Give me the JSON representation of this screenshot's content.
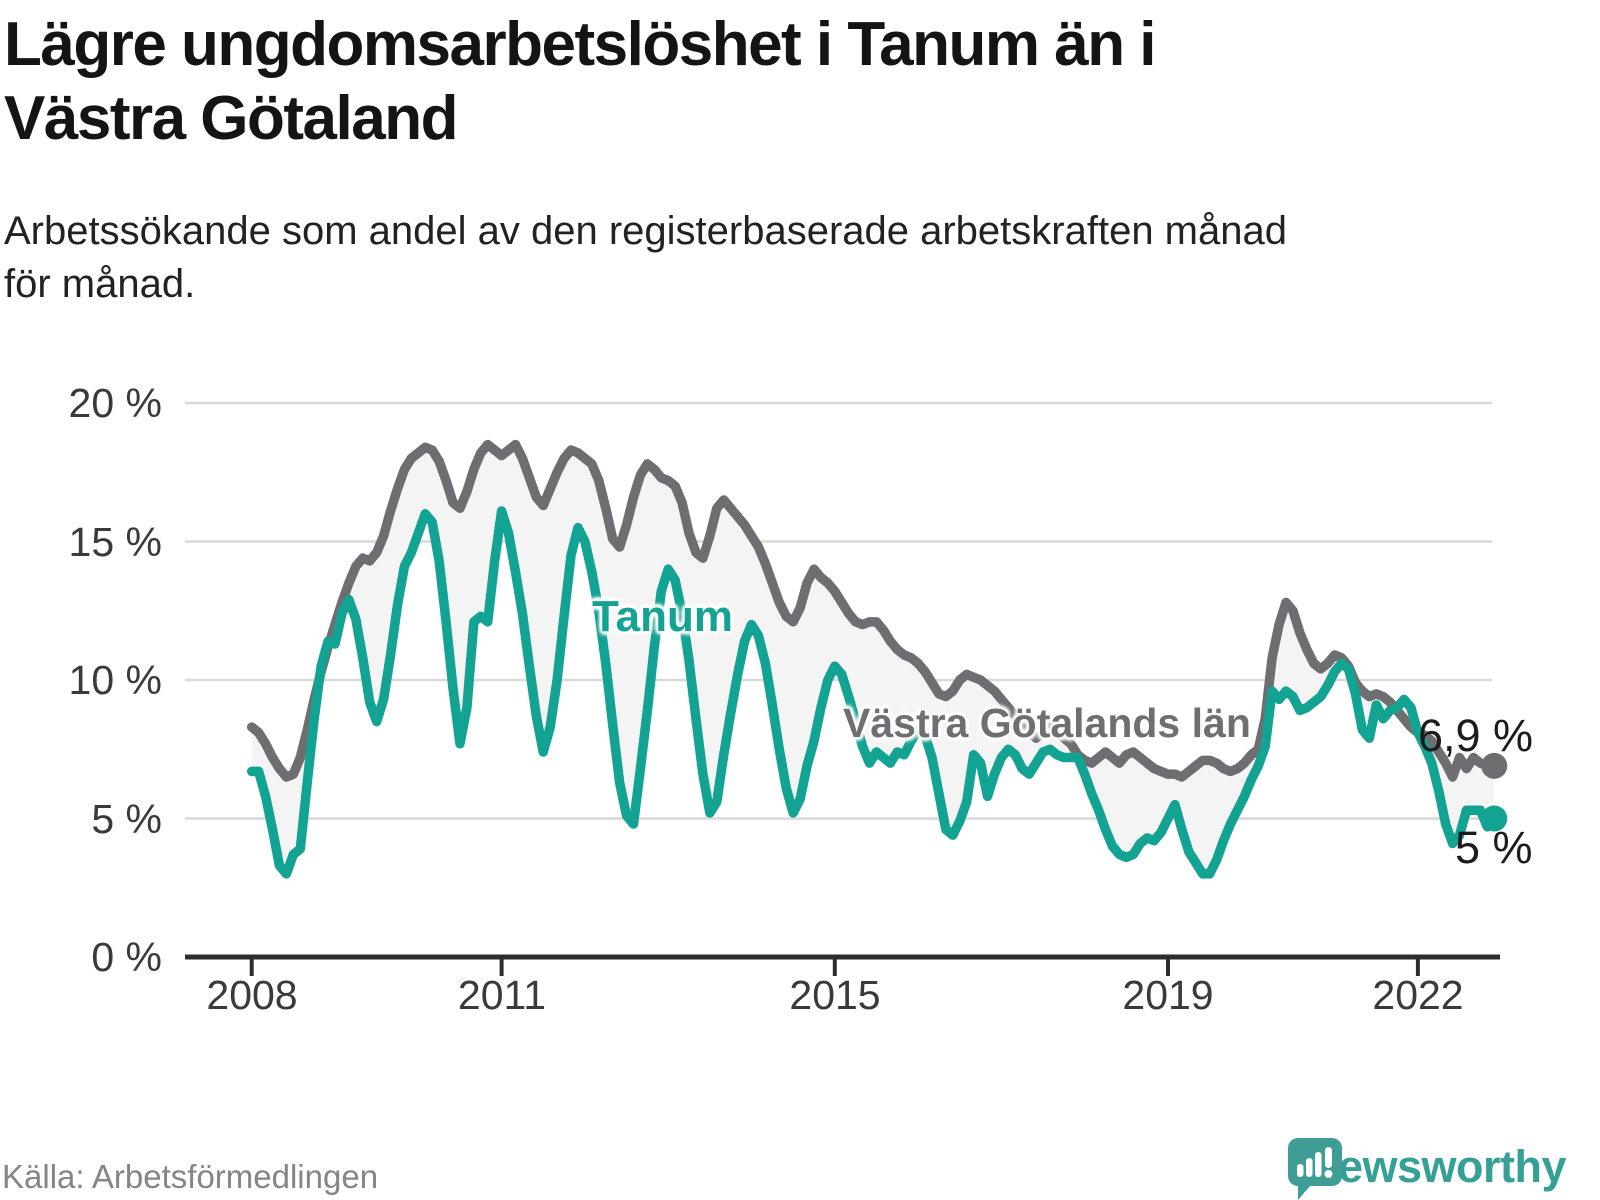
{
  "header": {
    "title_line1": "Lägre ungdomsarbetslöshet i Tanum än i",
    "title_line2": "Västra Götaland",
    "subtitle_line1": "Arbetssökande som andel av den registerbaserade arbetskraften månad",
    "subtitle_line2": "för månad."
  },
  "footer": {
    "source": "Källa: Arbetsförmedlingen",
    "brand": "Newsworthy"
  },
  "colors": {
    "tanum_line": "#13a392",
    "vg_line": "#6e6e72",
    "band_fill": "#f4f4f4",
    "gridline": "#d9d9d9",
    "axis": "#2d2d2d",
    "logo_teal": "#3e9e96"
  },
  "chart_data": {
    "type": "line",
    "title": "Lägre ungdomsarbetslöshet i Tanum än i Västra Götaland",
    "subtitle": "Arbetssökande som andel av den registerbaserade arbetskraften månad för månad.",
    "unit": "%",
    "x_start": "2008-01",
    "x_end": "2022-12",
    "points_per_year": 12,
    "ylim": [
      0,
      20
    ],
    "grid": "horizontal",
    "legend_position": "inline-labels",
    "y_tick_labels": [
      "20 %",
      "15 %",
      "10 %",
      "5 %",
      "0 %"
    ],
    "y_tick_values": [
      20,
      15,
      10,
      5,
      0
    ],
    "x_tick_labels": [
      "2008",
      "2011",
      "2015",
      "2019",
      "2022"
    ],
    "x_tick_indices": [
      0,
      36,
      84,
      132,
      168
    ],
    "series": [
      {
        "name": "Tanum",
        "color": "#13a392",
        "end_label": "5 %",
        "end_value": 5.0,
        "values": [
          6.7,
          6.7,
          5.8,
          4.6,
          3.3,
          3.0,
          3.7,
          3.9,
          6.3,
          8.6,
          10.5,
          11.4,
          11.3,
          12.4,
          12.9,
          12.2,
          10.8,
          9.2,
          8.5,
          9.3,
          10.9,
          12.7,
          14.1,
          14.6,
          15.3,
          16.0,
          15.7,
          14.3,
          12.1,
          9.7,
          7.7,
          9.0,
          12.1,
          12.3,
          12.1,
          14.3,
          16.1,
          15.3,
          13.9,
          12.4,
          10.5,
          8.7,
          7.4,
          8.3,
          10.0,
          12.3,
          14.5,
          15.5,
          15.0,
          13.9,
          12.5,
          10.6,
          8.4,
          6.3,
          5.1,
          4.8,
          6.8,
          8.9,
          11.2,
          13.2,
          14.0,
          13.6,
          12.4,
          10.7,
          8.6,
          6.6,
          5.2,
          5.6,
          7.3,
          8.8,
          10.2,
          11.4,
          12.0,
          11.6,
          10.6,
          9.1,
          7.5,
          6.1,
          5.2,
          5.7,
          6.9,
          7.8,
          9.0,
          10.0,
          10.5,
          10.2,
          9.4,
          8.5,
          7.6,
          7.0,
          7.4,
          7.2,
          7.0,
          7.4,
          7.3,
          7.8,
          8.2,
          8.0,
          7.2,
          5.9,
          4.6,
          4.4,
          4.9,
          5.6,
          7.3,
          7.0,
          5.8,
          6.6,
          7.2,
          7.5,
          7.3,
          6.8,
          6.6,
          7.0,
          7.4,
          7.5,
          7.3,
          7.2,
          7.2,
          7.2,
          6.6,
          5.9,
          5.3,
          4.6,
          4.0,
          3.7,
          3.6,
          3.7,
          4.1,
          4.3,
          4.2,
          4.5,
          5.0,
          5.5,
          4.6,
          3.8,
          3.4,
          3.0,
          3.0,
          3.5,
          4.2,
          4.8,
          5.3,
          5.8,
          6.4,
          6.9,
          7.6,
          9.6,
          9.3,
          9.6,
          9.4,
          8.9,
          9.0,
          9.2,
          9.4,
          9.8,
          10.3,
          10.6,
          10.4,
          9.5,
          8.2,
          7.9,
          9.1,
          8.6,
          8.9,
          9.0,
          9.3,
          9.0,
          8.1,
          7.6,
          7.0,
          6.0,
          4.8,
          4.1,
          4.4,
          5.3,
          5.3,
          5.3,
          4.7,
          5.0
        ]
      },
      {
        "name": "Västra Götalands län",
        "color": "#6e6e72",
        "end_label": "6,9 %",
        "end_value": 6.9,
        "values": [
          8.3,
          8.1,
          7.7,
          7.2,
          6.8,
          6.5,
          6.6,
          7.2,
          8.2,
          9.3,
          10.3,
          11.2,
          12.0,
          12.8,
          13.5,
          14.1,
          14.4,
          14.3,
          14.6,
          15.2,
          16.1,
          16.9,
          17.6,
          18.0,
          18.2,
          18.4,
          18.3,
          17.9,
          17.2,
          16.4,
          16.2,
          16.8,
          17.6,
          18.2,
          18.5,
          18.3,
          18.1,
          18.3,
          18.5,
          18.0,
          17.3,
          16.6,
          16.3,
          16.9,
          17.5,
          18.0,
          18.3,
          18.2,
          18.0,
          17.8,
          17.2,
          16.2,
          15.1,
          14.8,
          15.6,
          16.6,
          17.4,
          17.8,
          17.6,
          17.3,
          17.2,
          17.0,
          16.4,
          15.3,
          14.6,
          14.4,
          15.2,
          16.2,
          16.5,
          16.2,
          15.9,
          15.6,
          15.2,
          14.8,
          14.2,
          13.5,
          12.8,
          12.3,
          12.1,
          12.6,
          13.5,
          14.0,
          13.7,
          13.5,
          13.2,
          12.8,
          12.4,
          12.1,
          12.0,
          12.1,
          12.1,
          11.8,
          11.4,
          11.1,
          10.9,
          10.8,
          10.6,
          10.3,
          9.9,
          9.5,
          9.4,
          9.6,
          10.0,
          10.2,
          10.1,
          10.0,
          9.8,
          9.6,
          9.3,
          9.0,
          8.7,
          8.4,
          8.1,
          7.9,
          8.1,
          8.3,
          8.1,
          7.9,
          7.7,
          7.3,
          7.1,
          7.0,
          7.2,
          7.4,
          7.2,
          7.0,
          7.3,
          7.4,
          7.2,
          7.0,
          6.8,
          6.7,
          6.6,
          6.6,
          6.5,
          6.7,
          6.9,
          7.1,
          7.1,
          7.0,
          6.8,
          6.7,
          6.8,
          7.0,
          7.3,
          7.5,
          8.6,
          10.8,
          12.0,
          12.8,
          12.5,
          11.7,
          11.1,
          10.6,
          10.4,
          10.6,
          10.9,
          10.8,
          10.5,
          9.9,
          9.6,
          9.4,
          9.5,
          9.4,
          9.2,
          8.9,
          8.6,
          8.3,
          8.1,
          8.0,
          7.8,
          7.4,
          7.0,
          6.5,
          7.2,
          6.8,
          7.2,
          7.0,
          6.9,
          6.9
        ]
      }
    ]
  }
}
